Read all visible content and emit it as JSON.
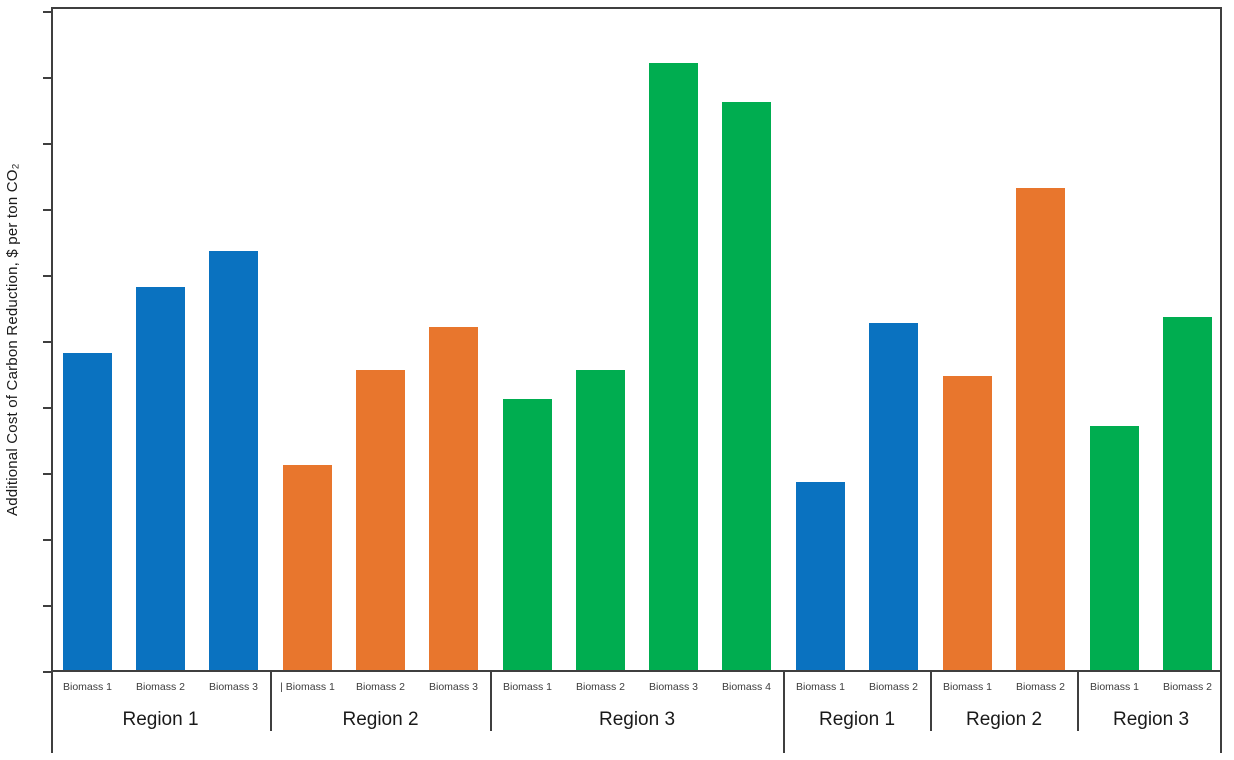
{
  "chart": {
    "y_axis_title": "Additional Cost of Carbon Reduction, $ per ton CO₂"
  },
  "chart_data": {
    "type": "bar",
    "title": "",
    "xlabel": "",
    "ylabel": "Additional Cost of Carbon Reduction, $ per ton CO₂",
    "ylim": [
      0,
      10
    ],
    "y_axis_note": "no numeric tick labels shown; values estimated in gridline-tick units (10 equal intervals between baseline and top tick)",
    "gridlines": false,
    "legend": "none",
    "groups": [
      {
        "region": "Region 1",
        "color_key": "blue",
        "bars": [
          {
            "label": "Biomass 1",
            "value": 4.8
          },
          {
            "label": "Biomass 2",
            "value": 5.8
          },
          {
            "label": "Biomass 3",
            "value": 6.35
          }
        ]
      },
      {
        "region": "Region 2",
        "color_key": "orange",
        "bars": [
          {
            "label": "| Biomass 1",
            "value": 3.1
          },
          {
            "label": "Biomass 2",
            "value": 4.55
          },
          {
            "label": "Biomass 3",
            "value": 5.2
          }
        ]
      },
      {
        "region": "Region 3",
        "color_key": "green",
        "bars": [
          {
            "label": "Biomass 1",
            "value": 4.1
          },
          {
            "label": "Biomass 2",
            "value": 4.55
          },
          {
            "label": "Biomass 3",
            "value": 9.2
          },
          {
            "label": "Biomass 4",
            "value": 8.6
          }
        ]
      },
      {
        "region": "Region 1",
        "color_key": "blue",
        "bars": [
          {
            "label": "Biomass 1",
            "value": 2.85
          },
          {
            "label": "Biomass 2",
            "value": 5.25
          }
        ]
      },
      {
        "region": "Region 2",
        "color_key": "orange",
        "bars": [
          {
            "label": "Biomass 1",
            "value": 4.45
          },
          {
            "label": "Biomass 2",
            "value": 7.3
          }
        ]
      },
      {
        "region": "Region 3",
        "color_key": "green",
        "bars": [
          {
            "label": "Biomass 1",
            "value": 3.7
          },
          {
            "label": "Biomass 2",
            "value": 5.35
          }
        ]
      }
    ],
    "colors": {
      "blue": "#0a72c0",
      "orange": "#e8762d",
      "green": "#00ad50",
      "axis": "#3f3f3f"
    }
  }
}
